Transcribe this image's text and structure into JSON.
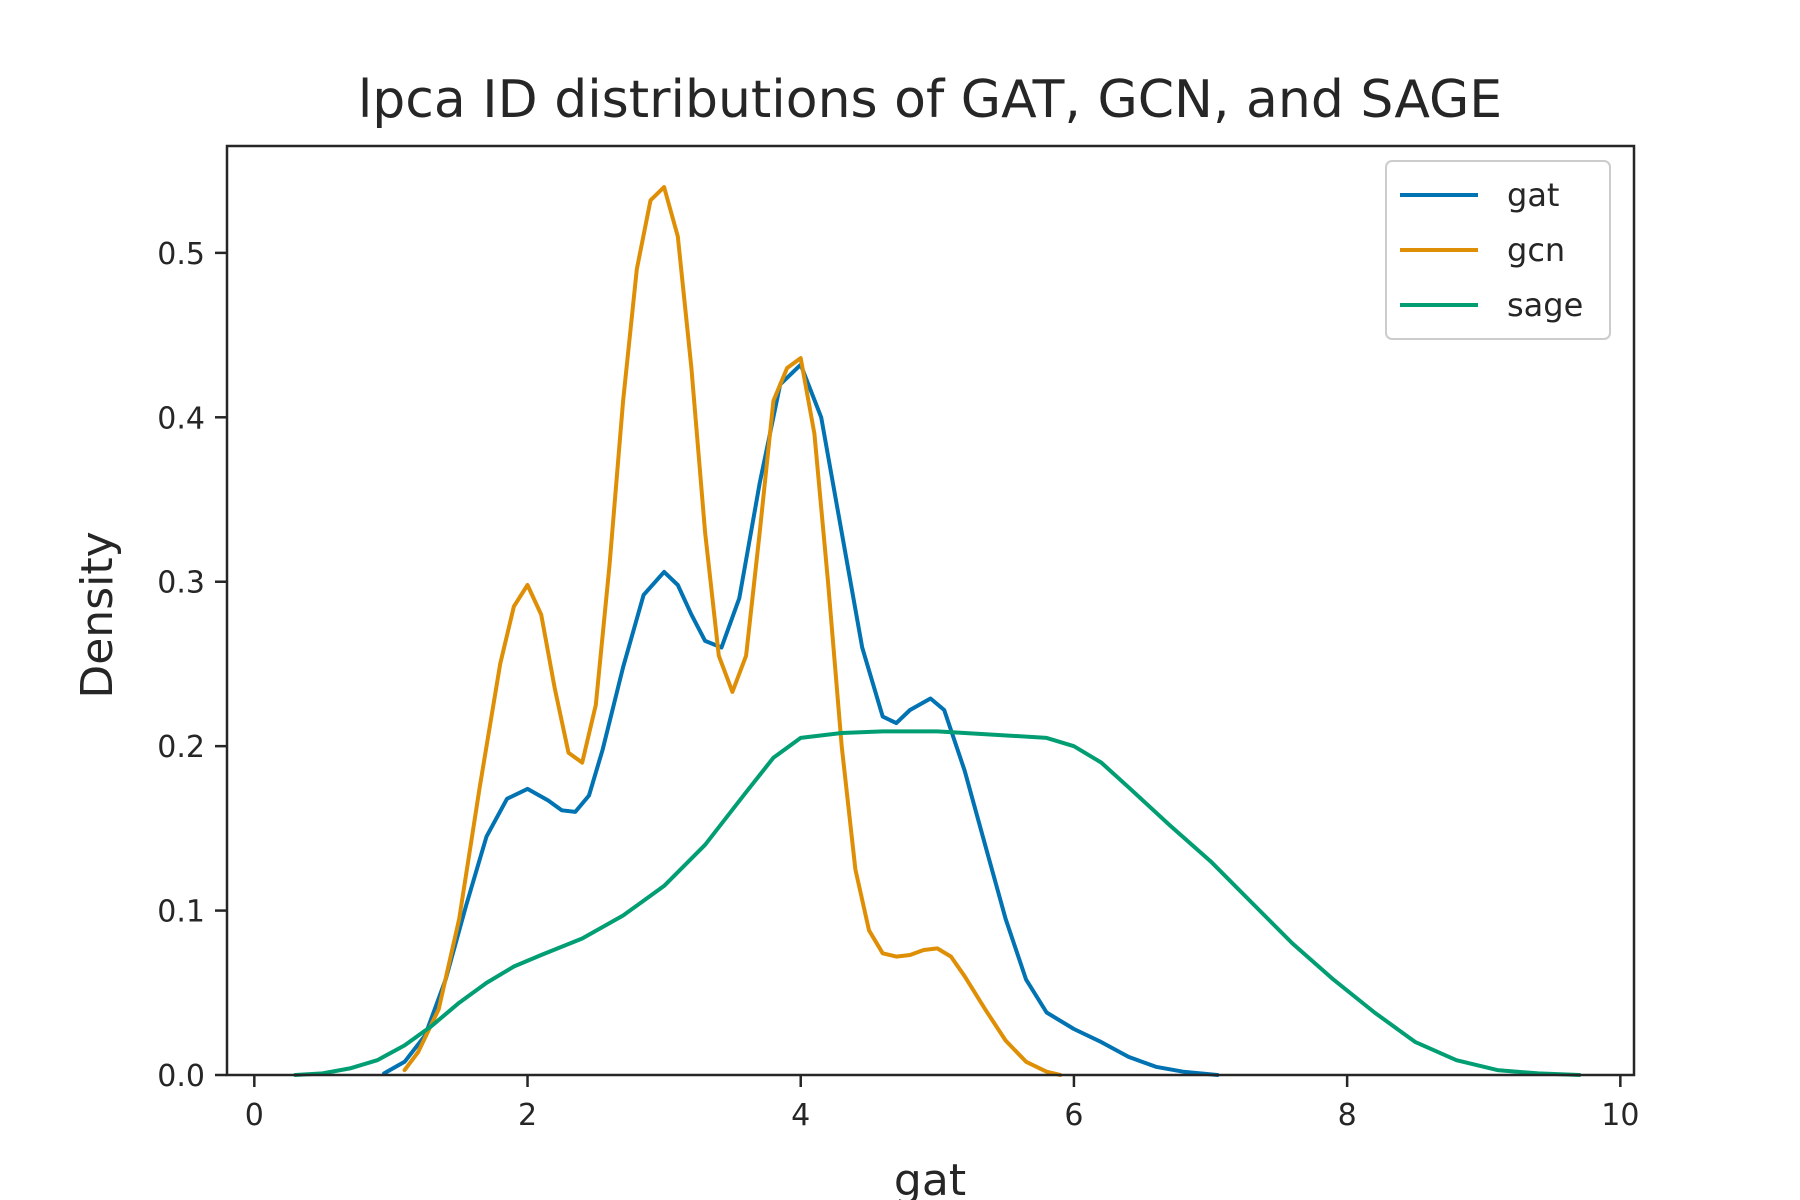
{
  "chart_data": {
    "type": "line",
    "title": "lpca ID distributions of GAT, GCN, and SAGE",
    "xlabel": "gat",
    "ylabel": "Density",
    "xlim": [
      -0.2,
      10.1
    ],
    "ylim": [
      0,
      0.565
    ],
    "xticks": [
      0,
      2,
      4,
      6,
      8,
      10
    ],
    "yticks": [
      0.0,
      0.1,
      0.2,
      0.3,
      0.4,
      0.5
    ],
    "xtick_labels": [
      "0",
      "2",
      "4",
      "6",
      "8",
      "10"
    ],
    "ytick_labels": [
      "0.0",
      "0.1",
      "0.2",
      "0.3",
      "0.4",
      "0.5"
    ],
    "grid": false,
    "legend_position": "top-right",
    "series": [
      {
        "name": "gat",
        "color": "#0173b2",
        "x": [
          0.95,
          1.1,
          1.25,
          1.4,
          1.55,
          1.7,
          1.85,
          2.0,
          2.15,
          2.25,
          2.35,
          2.45,
          2.55,
          2.7,
          2.85,
          3.0,
          3.1,
          3.2,
          3.3,
          3.42,
          3.55,
          3.7,
          3.85,
          4.0,
          4.15,
          4.3,
          4.45,
          4.6,
          4.7,
          4.8,
          4.95,
          5.05,
          5.2,
          5.35,
          5.5,
          5.65,
          5.8,
          6.0,
          6.2,
          6.4,
          6.6,
          6.8,
          7.05
        ],
        "y": [
          0.001,
          0.008,
          0.024,
          0.058,
          0.103,
          0.145,
          0.168,
          0.174,
          0.167,
          0.161,
          0.16,
          0.17,
          0.198,
          0.248,
          0.292,
          0.306,
          0.298,
          0.28,
          0.264,
          0.26,
          0.29,
          0.36,
          0.42,
          0.432,
          0.4,
          0.33,
          0.26,
          0.218,
          0.214,
          0.222,
          0.229,
          0.222,
          0.185,
          0.14,
          0.095,
          0.058,
          0.038,
          0.028,
          0.02,
          0.011,
          0.005,
          0.002,
          0.0
        ]
      },
      {
        "name": "gcn",
        "color": "#de8f05",
        "x": [
          1.1,
          1.2,
          1.35,
          1.5,
          1.65,
          1.8,
          1.9,
          2.0,
          2.1,
          2.2,
          2.3,
          2.4,
          2.5,
          2.6,
          2.7,
          2.8,
          2.9,
          3.0,
          3.1,
          3.2,
          3.3,
          3.4,
          3.5,
          3.6,
          3.7,
          3.8,
          3.9,
          4.0,
          4.1,
          4.2,
          4.3,
          4.4,
          4.5,
          4.6,
          4.7,
          4.8,
          4.9,
          5.0,
          5.1,
          5.2,
          5.35,
          5.5,
          5.65,
          5.8,
          5.9
        ],
        "y": [
          0.003,
          0.014,
          0.04,
          0.095,
          0.175,
          0.25,
          0.285,
          0.298,
          0.28,
          0.235,
          0.196,
          0.19,
          0.225,
          0.31,
          0.41,
          0.49,
          0.532,
          0.54,
          0.51,
          0.43,
          0.33,
          0.255,
          0.233,
          0.255,
          0.33,
          0.41,
          0.43,
          0.436,
          0.39,
          0.3,
          0.2,
          0.125,
          0.088,
          0.074,
          0.072,
          0.073,
          0.076,
          0.077,
          0.072,
          0.06,
          0.04,
          0.021,
          0.008,
          0.002,
          0.0
        ]
      },
      {
        "name": "sage",
        "color": "#029e73",
        "x": [
          0.3,
          0.5,
          0.7,
          0.9,
          1.1,
          1.3,
          1.5,
          1.7,
          1.9,
          2.1,
          2.4,
          2.7,
          3.0,
          3.3,
          3.6,
          3.8,
          4.0,
          4.3,
          4.6,
          5.0,
          5.4,
          5.8,
          6.0,
          6.2,
          6.4,
          6.7,
          7.0,
          7.3,
          7.6,
          7.9,
          8.2,
          8.5,
          8.8,
          9.1,
          9.4,
          9.7
        ],
        "y": [
          0.0,
          0.001,
          0.004,
          0.009,
          0.018,
          0.03,
          0.044,
          0.056,
          0.066,
          0.073,
          0.083,
          0.097,
          0.115,
          0.14,
          0.172,
          0.193,
          0.205,
          0.208,
          0.209,
          0.209,
          0.207,
          0.205,
          0.2,
          0.19,
          0.175,
          0.152,
          0.13,
          0.105,
          0.08,
          0.058,
          0.038,
          0.02,
          0.009,
          0.003,
          0.001,
          0.0
        ]
      }
    ]
  }
}
